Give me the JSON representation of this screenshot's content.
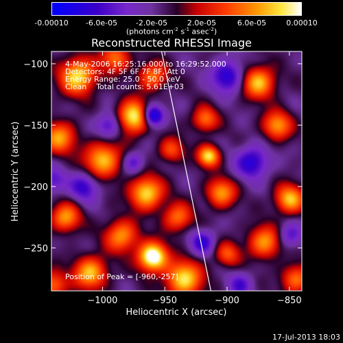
{
  "colorbar": {
    "ticks": [
      {
        "label": "-0.00010",
        "value": -0.0001
      },
      {
        "label": "-6.0e-05",
        "value": -6e-05
      },
      {
        "label": "-2.0e-05",
        "value": -2e-05
      },
      {
        "label": "2.0e-05",
        "value": 2e-05
      },
      {
        "label": "6.0e-05",
        "value": 6e-05
      },
      {
        "label": "0.00010",
        "value": 0.0001
      }
    ],
    "range": [
      -0.0001,
      0.0001
    ],
    "units_prefix": "(photons cm",
    "units_exp1": "-2",
    "units_mid1": " s",
    "units_exp2": "-1",
    "units_mid2": " asec",
    "units_exp3": "-2",
    "units_suffix": ")"
  },
  "chart_data": {
    "type": "heatmap",
    "title": "Reconstructed RHESSI Image",
    "xlabel": "Heliocentric X (arcsec)",
    "ylabel": "Heliocentric Y (arcsec)",
    "xlim": [
      -1041,
      -840
    ],
    "ylim": [
      -285,
      -90
    ],
    "x_ticks": [
      -1000,
      -950,
      -900,
      -850
    ],
    "y_ticks": [
      -100,
      -150,
      -200,
      -250
    ],
    "x_tick_labels": [
      "−1000",
      "−950",
      "−900",
      "−850"
    ],
    "y_tick_labels": [
      "−100",
      "−150",
      "−200",
      "−250"
    ],
    "annotations": [
      "4-May-2006 16:25:16.000 to 16:29:52.000",
      "Detectors: 4F 5F 6F 7F 8F, Att 0",
      "Energy Range: 25.0 - 50.0 keV",
      "Clean    Total counts: 5.61E+03"
    ],
    "peak_label": "Position of Peak = [-960,-257]",
    "peak": [
      -960,
      -257
    ],
    "limb_line": [
      [
        -953,
        -88
      ],
      [
        -913,
        -285
      ]
    ],
    "grid": false,
    "colormap": "blue-purple-red-orange-yellow-white"
  },
  "footer": {
    "date": "17-Jul-2013 18:03"
  }
}
